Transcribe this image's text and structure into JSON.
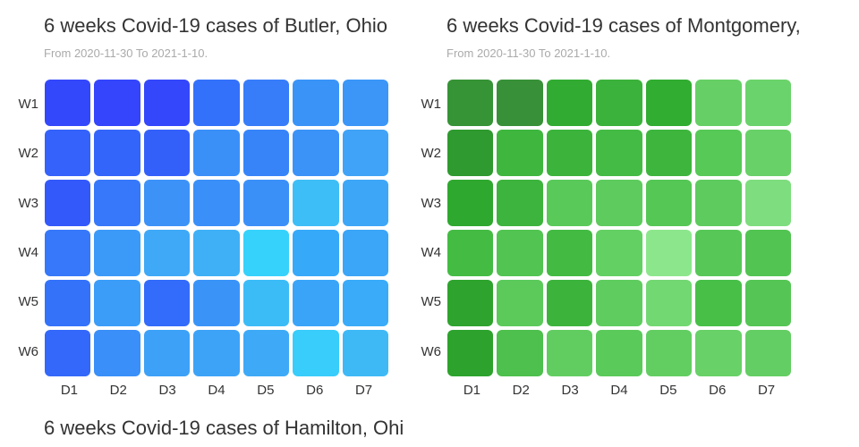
{
  "page": {
    "background": "#ffffff",
    "title_color": "#333333",
    "subtitle_color": "#aaaaaa",
    "axis_label_color": "#333333"
  },
  "chart_data": [
    {
      "type": "heatmap",
      "title": "6 weeks Covid-19 cases of Butler, Ohio",
      "subtitle": "From 2020-11-30 To 2021-1-10.",
      "palette": "blue",
      "value_encoding": "color",
      "rows": [
        "W1",
        "W2",
        "W3",
        "W4",
        "W5",
        "W6"
      ],
      "cols": [
        "D1",
        "D2",
        "D3",
        "D4",
        "D5",
        "D6",
        "D7"
      ],
      "cell_colors": [
        [
          "#3448fb",
          "#3445fb",
          "#3447fb",
          "#3471fa",
          "#377df9",
          "#3a94f8",
          "#3b96f8"
        ],
        [
          "#3462fa",
          "#3465fa",
          "#3460fa",
          "#3b90f8",
          "#3784f9",
          "#3b93f8",
          "#40a3f7"
        ],
        [
          "#3459fa",
          "#3678f9",
          "#3d92f8",
          "#3b8ff8",
          "#3b90f8",
          "#3ebef6",
          "#3ea6f7"
        ],
        [
          "#3678f9",
          "#3b9af8",
          "#3fa9f7",
          "#3fb0f6",
          "#36d2fb",
          "#37a9f9",
          "#3ba5f7"
        ],
        [
          "#3472fa",
          "#3b9df8",
          "#336bfa",
          "#3a94f8",
          "#3cbcf7",
          "#3aa5f8",
          "#3aabf8"
        ],
        [
          "#3468fa",
          "#3a8ff8",
          "#3da1f7",
          "#3da3f7",
          "#3eaaf7",
          "#38cdfa",
          "#3fb9f6"
        ]
      ]
    },
    {
      "type": "heatmap",
      "title": "6 weeks Covid-19 cases of Montgomery,",
      "subtitle": "From 2020-11-30 To 2021-1-10.",
      "palette": "green",
      "value_encoding": "color",
      "rows": [
        "W1",
        "W2",
        "W3",
        "W4",
        "W5",
        "W6"
      ],
      "cols": [
        "D1",
        "D2",
        "D3",
        "D4",
        "D5",
        "D6",
        "D7"
      ],
      "cell_colors": [
        [
          "#369336",
          "#389138",
          "#32ab32",
          "#3bb23b",
          "#31ad31",
          "#66d066",
          "#6bd36b"
        ],
        [
          "#2f9a2f",
          "#3fb73f",
          "#3cb43c",
          "#44bb44",
          "#3eb63e",
          "#57c957",
          "#68d168"
        ],
        [
          "#2fa82f",
          "#3db43d",
          "#59c959",
          "#5dcb5d",
          "#55c755",
          "#5ecb5e",
          "#7edd7e"
        ],
        [
          "#44bc44",
          "#52c452",
          "#43bb43",
          "#63d063",
          "#8ce78c",
          "#57c857",
          "#52c452"
        ],
        [
          "#2ea42e",
          "#5bca5b",
          "#3cb43c",
          "#5fcc5f",
          "#72d872",
          "#48c048",
          "#55c655"
        ],
        [
          "#2da32d",
          "#4dc04d",
          "#61cd61",
          "#5aca5a",
          "#62ce62",
          "#68d168",
          "#63ce63"
        ]
      ]
    },
    {
      "type": "heatmap",
      "title": "6 weeks Covid-19 cases of Hamilton, Ohi",
      "rows": [],
      "cols": [],
      "cell_colors": []
    }
  ]
}
